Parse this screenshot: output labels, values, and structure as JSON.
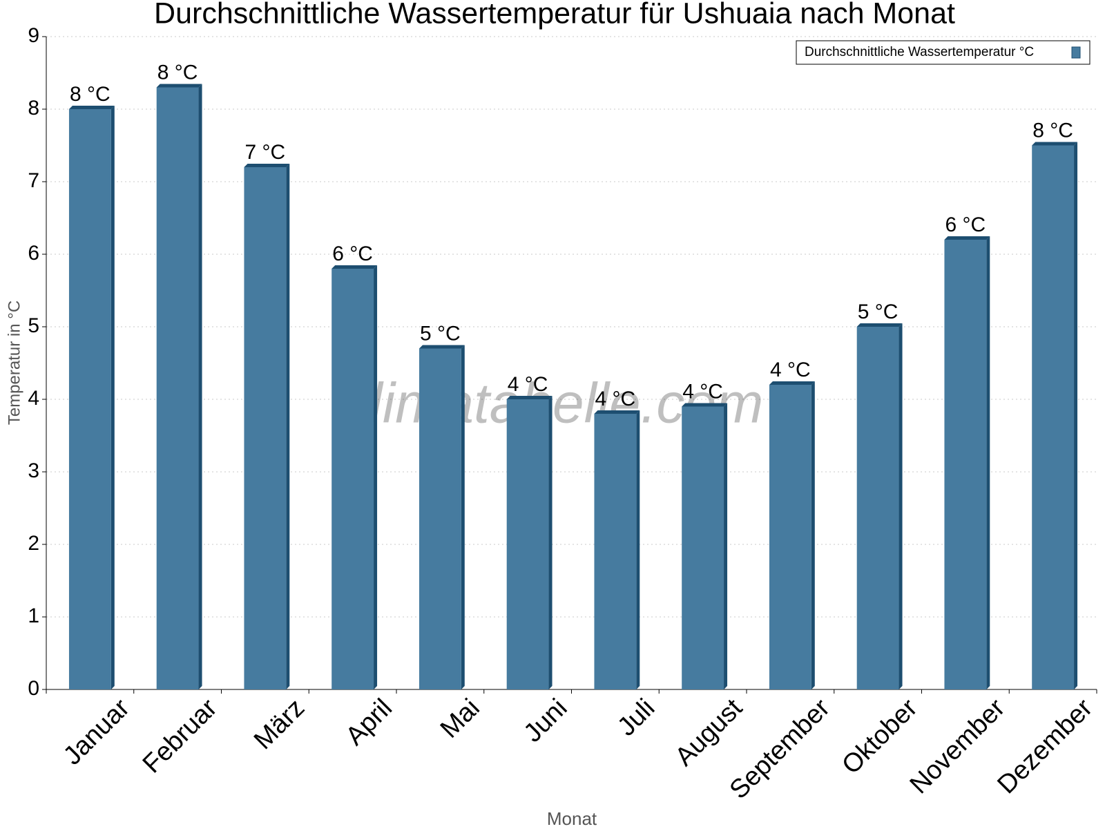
{
  "chart_data": {
    "type": "bar",
    "title": "Durchschnittliche Wassertemperatur für Ushuaia nach Monat",
    "x_label": "Monat",
    "y_label": "Temperatur in °C",
    "watermark": "klimatabelle.com",
    "categories": [
      "Januar",
      "Februar",
      "März",
      "April",
      "Mai",
      "Juni",
      "Juli",
      "August",
      "September",
      "Oktober",
      "November",
      "Dezember"
    ],
    "series": [
      {
        "name": "Durchschnittliche Wassertemperatur °C",
        "color": "#467b9f",
        "values": [
          8.0,
          8.3,
          7.2,
          5.8,
          4.7,
          4.0,
          3.8,
          3.9,
          4.2,
          5.0,
          6.2,
          7.5
        ],
        "value_labels": [
          "8 °C",
          "8 °C",
          "7 °C",
          "6 °C",
          "5 °C",
          "4 °C",
          "4 °C",
          "4 °C",
          "4 °C",
          "5 °C",
          "6 °C",
          "8 °C"
        ]
      }
    ],
    "ylim": [
      0,
      9
    ],
    "yticks": [
      0,
      1,
      2,
      3,
      4,
      5,
      6,
      7,
      8,
      9
    ],
    "grid": true,
    "legend": "upper right"
  }
}
